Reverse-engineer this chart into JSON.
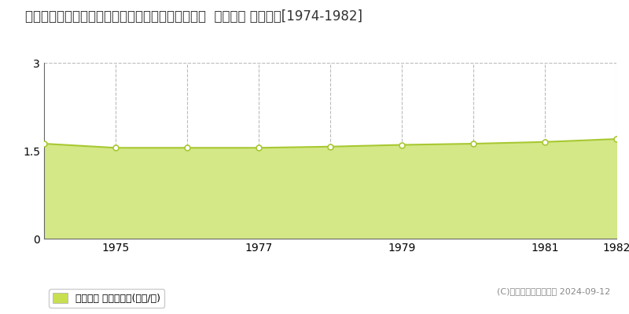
{
  "title": "青森県南津軽郡田舎館村大字諏訪堂字村元３０番１  地価公示 地価推移[1974-1982]",
  "years": [
    1974,
    1975,
    1976,
    1977,
    1978,
    1979,
    1980,
    1981,
    1982
  ],
  "values": [
    1.62,
    1.55,
    1.55,
    1.55,
    1.57,
    1.6,
    1.62,
    1.65,
    1.7
  ],
  "ylim": [
    0,
    3
  ],
  "yticks": [
    0,
    1.5,
    3
  ],
  "xticks": [
    1975,
    1977,
    1979,
    1981,
    1982
  ],
  "line_color": "#a8c832",
  "fill_color": "#d4e888",
  "marker_fill": "#ffffff",
  "marker_edge": "#a8c832",
  "grid_color": "#bbbbbb",
  "bg_color": "#ffffff",
  "legend_label": "地価公示 平均坪単価(万円/坪)",
  "legend_square_color": "#c8e050",
  "copyright_text": "(C)土地価格ドットコム 2024-09-12",
  "title_fontsize": 12,
  "axis_fontsize": 10,
  "legend_fontsize": 9,
  "copyright_fontsize": 8
}
